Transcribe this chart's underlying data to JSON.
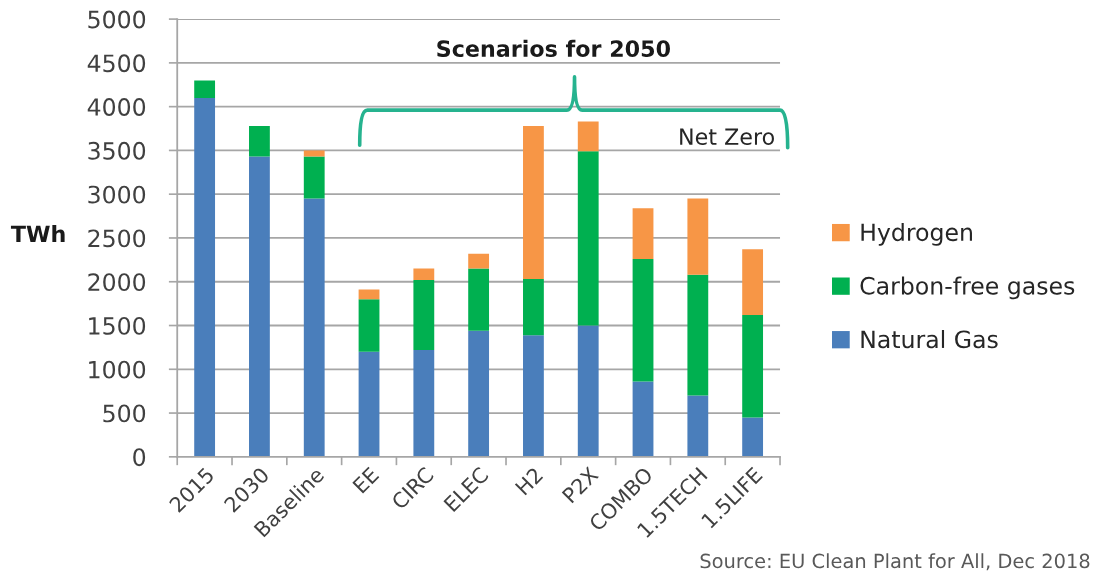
{
  "chart_data": {
    "type": "bar",
    "stacked": true,
    "title": "Scenarios for 2050",
    "ylabel": "TWh",
    "categories": [
      "2015",
      "2030",
      "Baseline",
      "EE",
      "CIRC",
      "ELEC",
      "H2",
      "P2X",
      "COMBO",
      "1.5TECH",
      "1.5LIFE"
    ],
    "series": [
      {
        "name": "Natural Gas",
        "color": "#4a7ebb",
        "values": [
          4100,
          3430,
          2950,
          1200,
          1220,
          1440,
          1390,
          1500,
          860,
          700,
          450
        ]
      },
      {
        "name": "Carbon-free gases",
        "color": "#00b050",
        "values": [
          200,
          350,
          480,
          600,
          800,
          710,
          640,
          1990,
          1400,
          1380,
          1170
        ]
      },
      {
        "name": "Hydrogen",
        "color": "#f79646",
        "values": [
          null,
          null,
          70,
          110,
          130,
          170,
          1750,
          340,
          580,
          870,
          750
        ]
      }
    ],
    "ylim": [
      0,
      5000
    ],
    "yticks": [
      0,
      500,
      1000,
      1500,
      2000,
      2500,
      3000,
      3500,
      4000,
      4500,
      5000
    ],
    "grid": "y",
    "legend": "right",
    "annotations": [
      "Net Zero",
      "Source: EU Clean Plant for All, Dec 2018"
    ]
  }
}
